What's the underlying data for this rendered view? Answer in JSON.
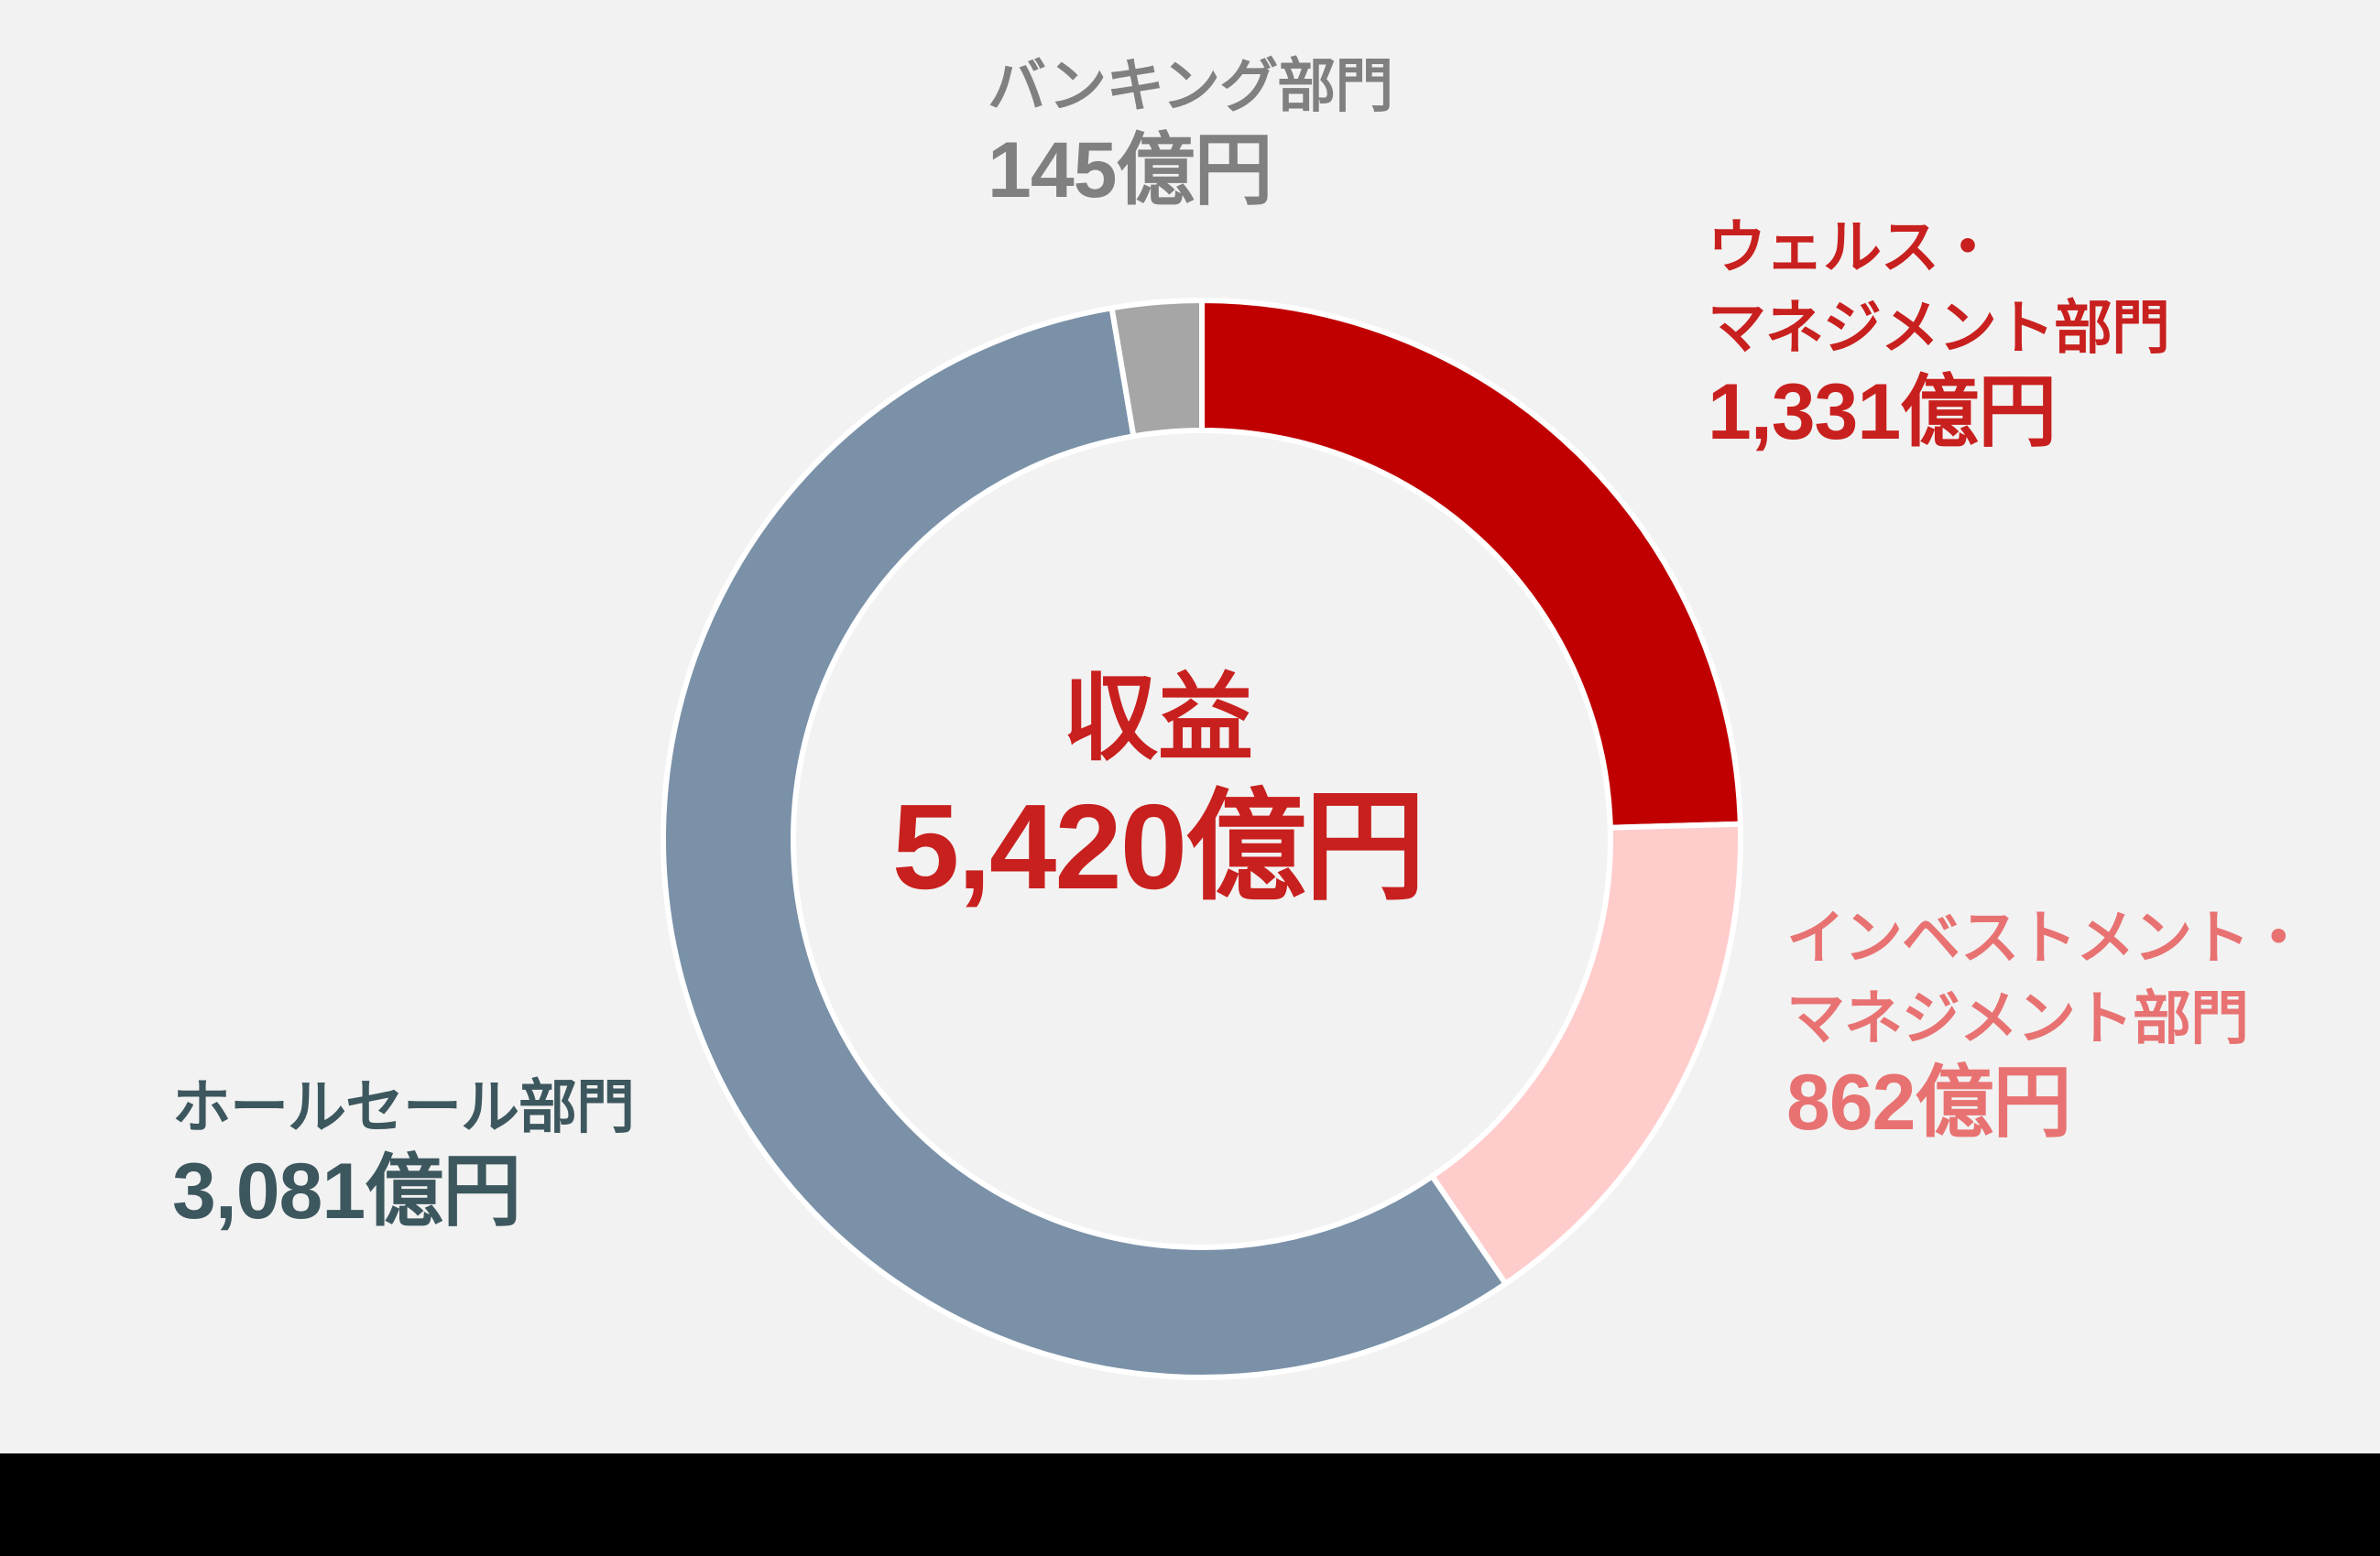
{
  "chart_data": {
    "type": "pie",
    "variant": "donut",
    "title": "収益",
    "total_label": "5,420億円",
    "total": 5420,
    "unit": "億円",
    "categories": [
      "ウェルス・マネジメント部門",
      "インベストメント・マネジメント部門",
      "ホールセール部門",
      "バンキング部門"
    ],
    "values": [
      1331,
      862,
      3081,
      145
    ],
    "colors": [
      "#C00000",
      "#FFCCCC",
      "#7A91A8",
      "#A6A6A6"
    ],
    "label_colors": [
      "#C8201E",
      "#E87272",
      "#3D575E",
      "#808080"
    ],
    "start_angle_deg": 0,
    "direction": "clockwise",
    "legend_position": "none (direct labels)"
  },
  "labels": {
    "banking": {
      "name": "バンキング部門",
      "value": "145億円"
    },
    "wealth": {
      "name_line1": "ウェルス・",
      "name_line2": "マネジメント部門",
      "value": "1,331億円"
    },
    "investment": {
      "name_line1": "インベストメント・",
      "name_line2": "マネジメント部門",
      "value": "862億円"
    },
    "wholesale": {
      "name": "ホールセール部門",
      "value": "3,081億円"
    }
  },
  "center": {
    "title": "収益",
    "total": "5,420億円"
  },
  "colors": {
    "background": "#F2F2F2",
    "bottom_bar": "#000000",
    "slice_stroke": "#FFFFFF",
    "center_text": "#C8201E"
  }
}
